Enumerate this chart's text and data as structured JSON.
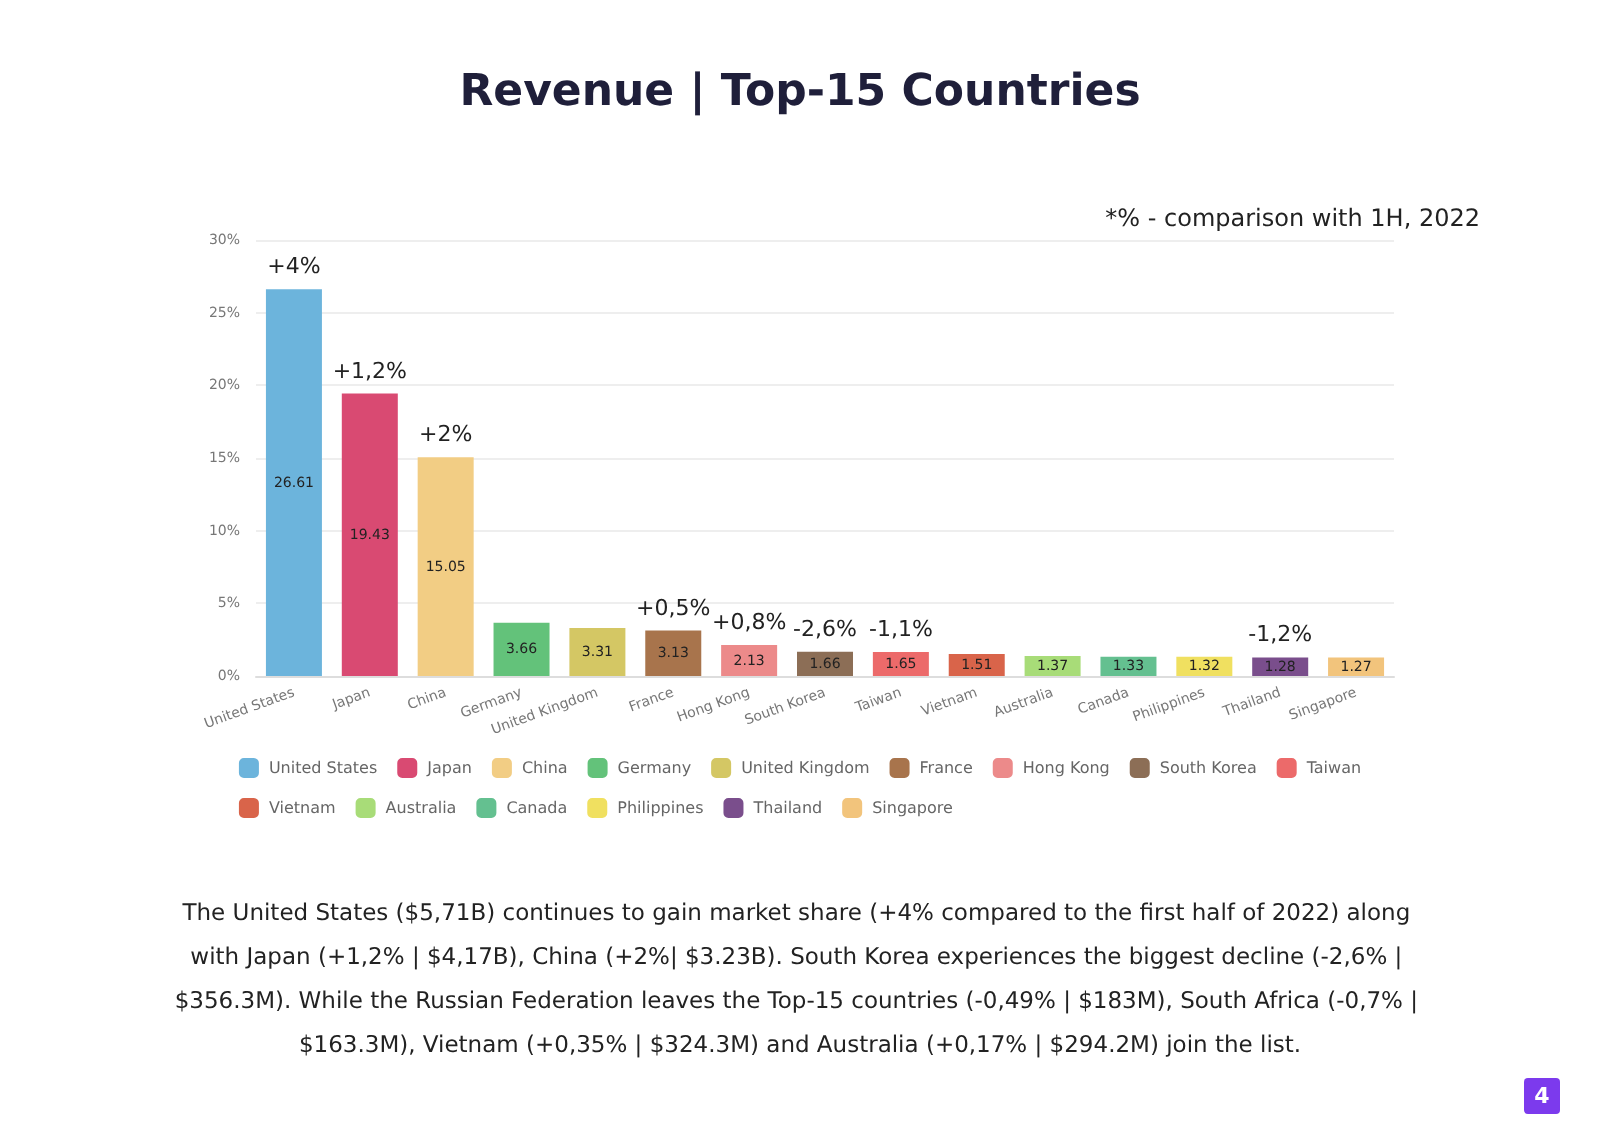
{
  "chart_data": {
    "type": "bar",
    "title": "Revenue | Top-15 Countries",
    "categories": [
      "United States",
      "Japan",
      "China",
      "Germany",
      "United Kingdom",
      "France",
      "Hong Kong",
      "South Korea",
      "Taiwan",
      "Vietnam",
      "Australia",
      "Canada",
      "Philippines",
      "Thailand",
      "Singapore"
    ],
    "series": [
      {
        "name": "United States",
        "color": "#6cb4dc",
        "values": [
          26.61,
          null,
          null,
          null,
          null,
          null,
          null,
          null,
          null,
          null,
          null,
          null,
          null,
          null,
          null
        ]
      },
      {
        "name": "Japan",
        "color": "#d94a72",
        "values": [
          null,
          19.43,
          null,
          null,
          null,
          null,
          null,
          null,
          null,
          null,
          null,
          null,
          null,
          null,
          null
        ]
      },
      {
        "name": "China",
        "color": "#f2cd84",
        "values": [
          null,
          null,
          15.05,
          null,
          null,
          null,
          null,
          null,
          null,
          null,
          null,
          null,
          null,
          null,
          null
        ]
      },
      {
        "name": "Germany",
        "color": "#63c27a",
        "values": [
          null,
          null,
          null,
          3.66,
          null,
          null,
          null,
          null,
          null,
          null,
          null,
          null,
          null,
          null,
          null
        ]
      },
      {
        "name": "United Kingdom",
        "color": "#d4c764",
        "values": [
          null,
          null,
          null,
          null,
          3.31,
          null,
          null,
          null,
          null,
          null,
          null,
          null,
          null,
          null,
          null
        ]
      },
      {
        "name": "France",
        "color": "#a8744c",
        "values": [
          null,
          null,
          null,
          null,
          null,
          3.13,
          null,
          null,
          null,
          null,
          null,
          null,
          null,
          null,
          null
        ]
      },
      {
        "name": "Hong Kong",
        "color": "#ec8a8a",
        "values": [
          null,
          null,
          null,
          null,
          null,
          null,
          2.13,
          null,
          null,
          null,
          null,
          null,
          null,
          null,
          null
        ]
      },
      {
        "name": "South Korea",
        "color": "#8c6e56",
        "values": [
          null,
          null,
          null,
          null,
          null,
          null,
          null,
          1.66,
          null,
          null,
          null,
          null,
          null,
          null,
          null
        ]
      },
      {
        "name": "Taiwan",
        "color": "#ec6a6a",
        "values": [
          null,
          null,
          null,
          null,
          null,
          null,
          null,
          null,
          1.65,
          null,
          null,
          null,
          null,
          null,
          null
        ]
      },
      {
        "name": "Vietnam",
        "color": "#d9644a",
        "values": [
          null,
          null,
          null,
          null,
          null,
          null,
          null,
          null,
          null,
          1.51,
          null,
          null,
          null,
          null,
          null
        ]
      },
      {
        "name": "Australia",
        "color": "#a8dc78",
        "values": [
          null,
          null,
          null,
          null,
          null,
          null,
          null,
          null,
          null,
          null,
          1.37,
          null,
          null,
          null,
          null
        ]
      },
      {
        "name": "Canada",
        "color": "#64c090",
        "values": [
          null,
          null,
          null,
          null,
          null,
          null,
          null,
          null,
          null,
          null,
          null,
          1.33,
          null,
          null,
          null
        ]
      },
      {
        "name": "Philippines",
        "color": "#f0e060",
        "values": [
          null,
          null,
          null,
          null,
          null,
          null,
          null,
          null,
          null,
          null,
          null,
          null,
          1.32,
          null,
          null
        ]
      },
      {
        "name": "Thailand",
        "color": "#7a4e8c",
        "values": [
          null,
          null,
          null,
          null,
          null,
          null,
          null,
          null,
          null,
          null,
          null,
          null,
          null,
          1.28,
          null
        ]
      },
      {
        "name": "Singapore",
        "color": "#f2c47c",
        "values": [
          null,
          null,
          null,
          null,
          null,
          null,
          null,
          null,
          null,
          null,
          null,
          null,
          null,
          null,
          1.27
        ]
      }
    ],
    "ylim": [
      0,
      30
    ],
    "yticks": [
      {
        "value": 0,
        "label": "0%"
      },
      {
        "value": 5,
        "label": "5%"
      },
      {
        "value": 10,
        "label": "10%"
      },
      {
        "value": 15,
        "label": "15%"
      },
      {
        "value": 20,
        "label": "20%"
      },
      {
        "value": 25,
        "label": "25%"
      },
      {
        "value": 30,
        "label": "30%"
      }
    ],
    "grid": "y",
    "legend": "bottom",
    "data_labels": true,
    "annotations": [
      {
        "text": "+4%",
        "x": "United States",
        "y": 26.61
      },
      {
        "text": "+1,2%",
        "x": "Japan",
        "y": 19.43
      },
      {
        "text": "+2%",
        "x": "China",
        "y": 15.05
      },
      {
        "text": "+0,5%",
        "x": "France",
        "y": 3.13
      },
      {
        "text": "+0,8%",
        "x": "Hong Kong",
        "y": 2.13
      },
      {
        "text": "-2,6%",
        "x": "South Korea",
        "y": 1.66
      },
      {
        "text": "-1,1%",
        "x": "Taiwan",
        "y": 1.65
      },
      {
        "text": "-1,2%",
        "x": "Thailand",
        "y": 1.28
      },
      "*% - comparison with 1H, 2022",
      "The United States ($5,71B) continues to gain market share (+4% compared to the first half of 2022) along with Japan (+1,2% | $4,17B), China (+2%| $3.23B). South Korea experiences the biggest decline (-2,6% | $356.3M). While the Russian Federation leaves the Top-15 countries (-0,49% | $183M), South Africa (-0,7% | $163.3M), Vietnam (+0,35% | $324.3M) and Australia (+0,17% | $294.2M) join the list.",
      "4"
    ]
  }
}
